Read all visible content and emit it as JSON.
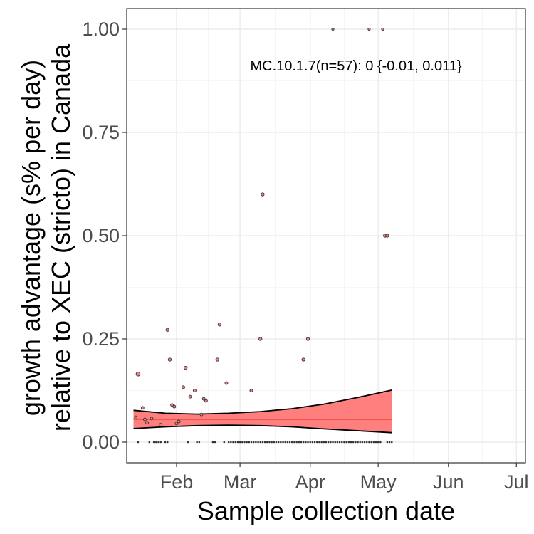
{
  "chart_data": {
    "type": "scatter",
    "title": "",
    "xlabel": "Sample collection date",
    "ylabel_lines": [
      "growth advantage (s% per day)",
      "relative to XEC (stricto) in Canada"
    ],
    "annotation": "MC.10.1.7(n=57): 0 {-0.01, 0.011}",
    "x_range": [
      "2025-01-10",
      "2025-07-05"
    ],
    "y_range": [
      -0.05,
      1.05
    ],
    "x_ticks": [
      {
        "date": "2025-02-01",
        "label": "Feb"
      },
      {
        "date": "2025-03-01",
        "label": "Mar"
      },
      {
        "date": "2025-04-01",
        "label": "Apr"
      },
      {
        "date": "2025-05-01",
        "label": "May"
      },
      {
        "date": "2025-06-01",
        "label": "Jun"
      },
      {
        "date": "2025-07-01",
        "label": "Jul"
      }
    ],
    "y_ticks": [
      {
        "value": 0,
        "label": "0.00"
      },
      {
        "value": 0.25,
        "label": "0.25"
      },
      {
        "value": 0.5,
        "label": "0.50"
      },
      {
        "value": 0.75,
        "label": "0.75"
      },
      {
        "value": 1,
        "label": "1.00"
      }
    ],
    "grid": true,
    "colors": {
      "ribbon": "#ff7f7f",
      "fit_line": "#e8504a",
      "point_fill": "#f08080",
      "point_edge": "#333333"
    },
    "points": [
      {
        "date": "2025-01-14",
        "value": 0.06
      },
      {
        "date": "2025-01-15",
        "value": 0.165
      },
      {
        "date": "2025-01-17",
        "value": 0.083
      },
      {
        "date": "2025-01-18",
        "value": 0.055
      },
      {
        "date": "2025-01-19",
        "value": 0.047
      },
      {
        "date": "2025-01-21",
        "value": 0.057
      },
      {
        "date": "2025-01-25",
        "value": 0.042
      },
      {
        "date": "2025-01-28",
        "value": 0.272
      },
      {
        "date": "2025-01-29",
        "value": 0.2
      },
      {
        "date": "2025-01-30",
        "value": 0.09
      },
      {
        "date": "2025-01-31",
        "value": 0.086
      },
      {
        "date": "2025-02-01",
        "value": 0.045
      },
      {
        "date": "2025-02-02",
        "value": 0.05
      },
      {
        "date": "2025-02-04",
        "value": 0.133
      },
      {
        "date": "2025-02-05",
        "value": 0.18
      },
      {
        "date": "2025-02-07",
        "value": 0.11
      },
      {
        "date": "2025-02-09",
        "value": 0.125
      },
      {
        "date": "2025-02-12",
        "value": 0.067
      },
      {
        "date": "2025-02-13",
        "value": 0.105
      },
      {
        "date": "2025-02-14",
        "value": 0.1
      },
      {
        "date": "2025-02-19",
        "value": 0.2
      },
      {
        "date": "2025-02-20",
        "value": 0.285
      },
      {
        "date": "2025-02-23",
        "value": 0.143
      },
      {
        "date": "2025-03-06",
        "value": 0.125
      },
      {
        "date": "2025-03-10",
        "value": 0.25
      },
      {
        "date": "2025-03-11",
        "value": 0.6
      },
      {
        "date": "2025-03-29",
        "value": 0.2
      },
      {
        "date": "2025-03-31",
        "value": 0.25
      },
      {
        "date": "2025-04-11",
        "value": 1.0
      },
      {
        "date": "2025-04-27",
        "value": 1.0
      },
      {
        "date": "2025-05-03",
        "value": 1.0
      },
      {
        "date": "2025-05-04",
        "value": 0.5
      },
      {
        "date": "2025-05-05",
        "value": 0.5
      }
    ],
    "zero_points": [
      "2025-01-15",
      "2025-01-20",
      "2025-01-22",
      "2025-01-23",
      "2025-01-24",
      "2025-01-25",
      "2025-01-27",
      "2025-01-28",
      "2025-02-06",
      "2025-02-10",
      "2025-02-11",
      "2025-02-17",
      "2025-02-18",
      "2025-02-22",
      "2025-02-24",
      "2025-02-25",
      "2025-02-26",
      "2025-02-27",
      "2025-02-28",
      "2025-03-01",
      "2025-03-02",
      "2025-03-03",
      "2025-03-04",
      "2025-03-05",
      "2025-03-06",
      "2025-03-07",
      "2025-03-08",
      "2025-03-09",
      "2025-03-10",
      "2025-03-11",
      "2025-03-12",
      "2025-03-13",
      "2025-03-14",
      "2025-03-15",
      "2025-03-16",
      "2025-03-17",
      "2025-03-18",
      "2025-03-19",
      "2025-03-20",
      "2025-03-21",
      "2025-03-22",
      "2025-03-23",
      "2025-03-24",
      "2025-03-25",
      "2025-03-26",
      "2025-03-27",
      "2025-03-28",
      "2025-03-29",
      "2025-03-30",
      "2025-03-31",
      "2025-04-01",
      "2025-04-02",
      "2025-04-03",
      "2025-04-04",
      "2025-04-05",
      "2025-04-06",
      "2025-04-07",
      "2025-04-08",
      "2025-04-09",
      "2025-04-10",
      "2025-04-11",
      "2025-04-12",
      "2025-04-13",
      "2025-04-14",
      "2025-04-15",
      "2025-04-16",
      "2025-04-17",
      "2025-04-18",
      "2025-04-19",
      "2025-04-20",
      "2025-04-21",
      "2025-04-22",
      "2025-04-23",
      "2025-04-24",
      "2025-04-25",
      "2025-04-26",
      "2025-04-27",
      "2025-04-28",
      "2025-04-29",
      "2025-04-30",
      "2025-05-01",
      "2025-05-02",
      "2025-05-05",
      "2025-05-06",
      "2025-05-07"
    ],
    "fit": {
      "dates": [
        "2025-01-13",
        "2025-01-27",
        "2025-02-10",
        "2025-02-24",
        "2025-03-10",
        "2025-03-24",
        "2025-04-07",
        "2025-04-21",
        "2025-05-07"
      ],
      "center": [
        0.055,
        0.055,
        0.055,
        0.055,
        0.055,
        0.055,
        0.055,
        0.055,
        0.055
      ],
      "upper": [
        0.077,
        0.07,
        0.068,
        0.07,
        0.074,
        0.081,
        0.092,
        0.107,
        0.126
      ],
      "lower": [
        0.033,
        0.037,
        0.04,
        0.041,
        0.04,
        0.037,
        0.032,
        0.028,
        0.023
      ]
    }
  }
}
